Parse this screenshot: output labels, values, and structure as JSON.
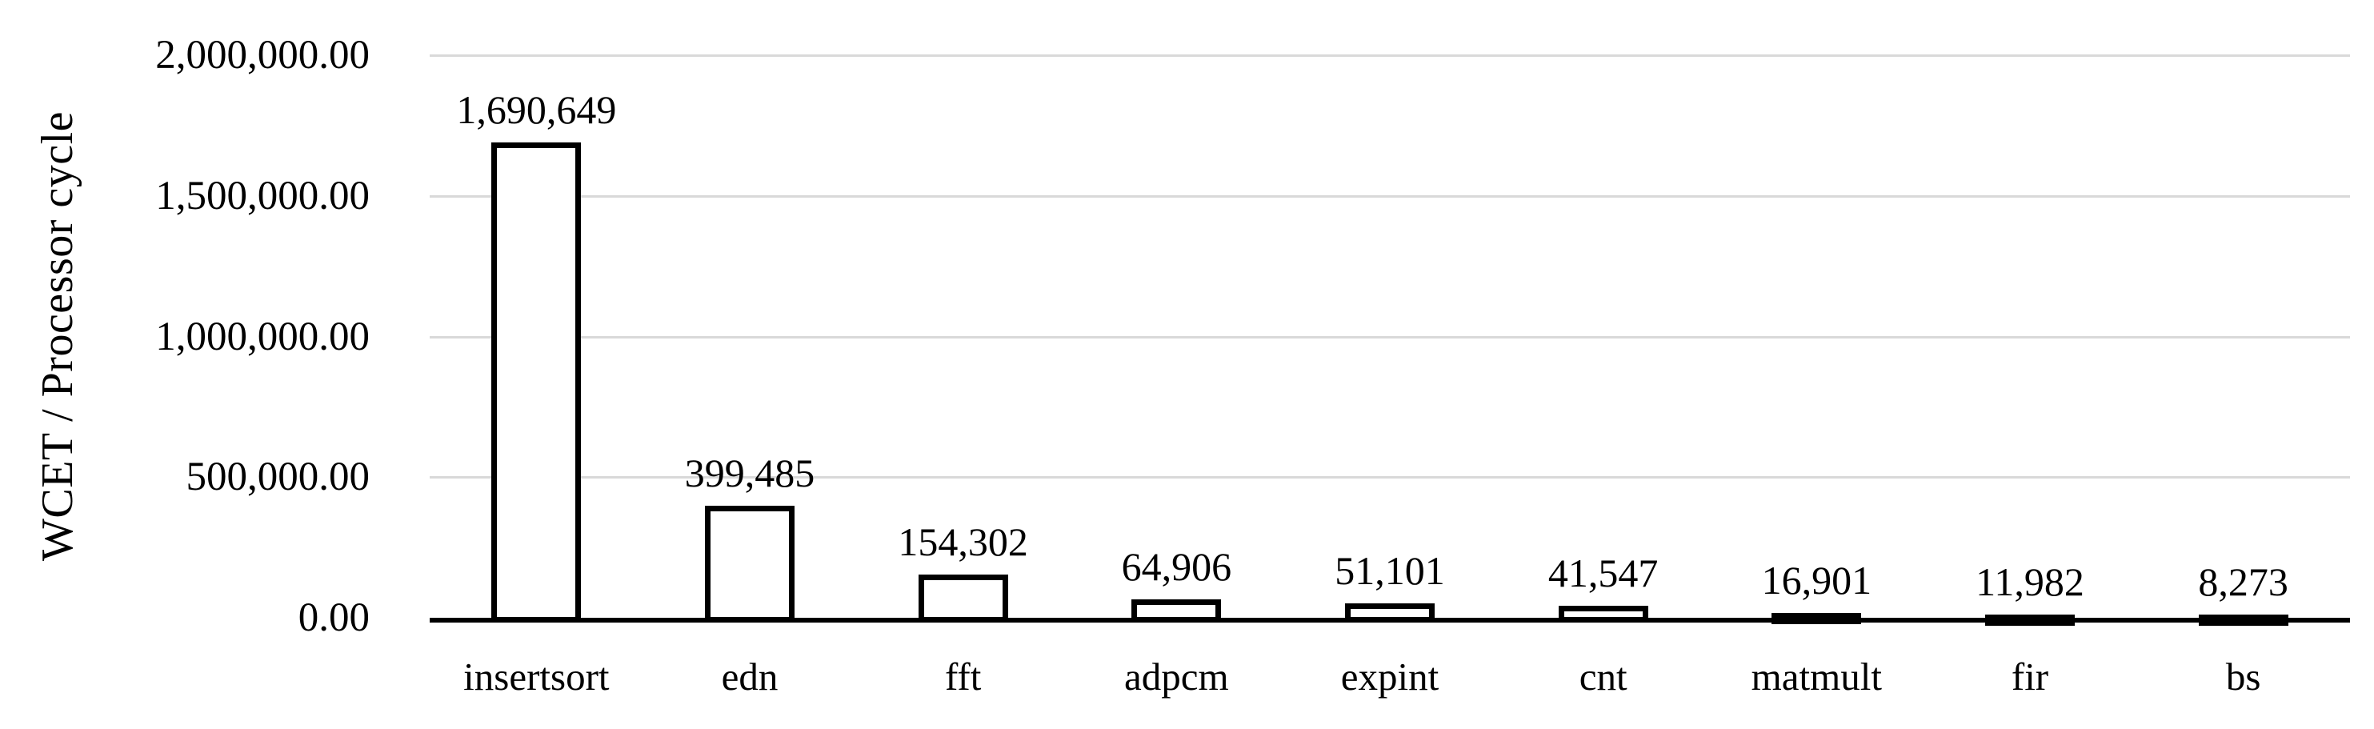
{
  "chart_data": {
    "type": "bar",
    "title": "",
    "xlabel": "",
    "ylabel": "WCET / Processor cycle",
    "categories": [
      "insertsort",
      "edn",
      "fft",
      "adpcm",
      "expint",
      "cnt",
      "matmult",
      "fir",
      "bs"
    ],
    "values": [
      1690649,
      399485,
      154302,
      64906,
      51101,
      41547,
      16901,
      11982,
      8273
    ],
    "value_labels": [
      "1,690,649",
      "399,485",
      "154,302",
      "64,906",
      "51,101",
      "41,547",
      "16,901",
      "11,982",
      "8,273"
    ],
    "ylim": [
      0,
      2000000
    ],
    "ytick_interval": 500000,
    "ytick_labels": [
      "2,000,000.00",
      "1,500,000.00",
      "1,000,000.00",
      "500,000.00",
      "0.00"
    ],
    "grid": "horizontal-only",
    "legend": "none",
    "colors": {
      "background": "#ffffff",
      "bar_fill": "#ffffff",
      "bar_stroke": "#000000",
      "gridline": "#d9d9d9",
      "axis_line": "#000000",
      "text": "#000000"
    }
  }
}
